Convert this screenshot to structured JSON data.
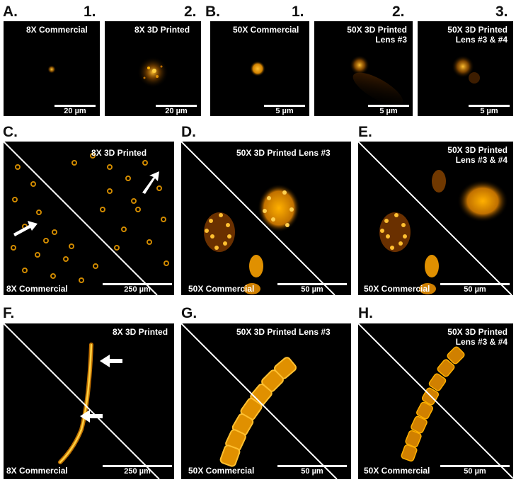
{
  "row1": {
    "label_A": "A.",
    "label_B": "B.",
    "num_A1": "1.",
    "num_A2": "2.",
    "num_B1": "1.",
    "num_B2": "2.",
    "num_B3": "3.",
    "A1": {
      "caption": "8X Commercial",
      "scale": "20 µm"
    },
    "A2": {
      "caption": "8X 3D Printed",
      "scale": "20 µm"
    },
    "B1": {
      "caption": "50X Commercial",
      "scale": "5 µm"
    },
    "B2": {
      "caption_line1": "50X 3D Printed",
      "caption_line2": "Lens #3",
      "scale": "5 µm"
    },
    "B3": {
      "caption_line1": "50X 3D Printed",
      "caption_line2": "Lens #3 & #4",
      "scale": "5 µm"
    }
  },
  "row2": {
    "C": {
      "label": "C.",
      "top_caption": "8X 3D Printed",
      "bottom_caption": "8X Commercial",
      "scale": "250 µm"
    },
    "D": {
      "label": "D.",
      "top_caption": "50X 3D Printed Lens #3",
      "bottom_caption": "50X Commercial",
      "scale": "50 µm"
    },
    "E": {
      "label": "E.",
      "top_caption_line1": "50X 3D Printed",
      "top_caption_line2": "Lens #3 & #4",
      "bottom_caption": "50X Commercial",
      "scale": "50 µm"
    }
  },
  "row3": {
    "F": {
      "label": "F.",
      "top_caption": "8X 3D Printed",
      "bottom_caption": "8X Commercial",
      "scale": "250 µm"
    },
    "G": {
      "label": "G.",
      "top_caption": "50X 3D Printed Lens #3",
      "bottom_caption": "50X Commercial",
      "scale": "50 µm"
    },
    "H": {
      "label": "H.",
      "top_caption_line1": "50X 3D Printed",
      "top_caption_line2": "Lens #3 & #4",
      "bottom_caption": "50X Commercial",
      "scale": "50 µm"
    }
  },
  "colors": {
    "fluorescence": "#ffb000",
    "background": "#000000",
    "annotation": "#ffffff"
  }
}
